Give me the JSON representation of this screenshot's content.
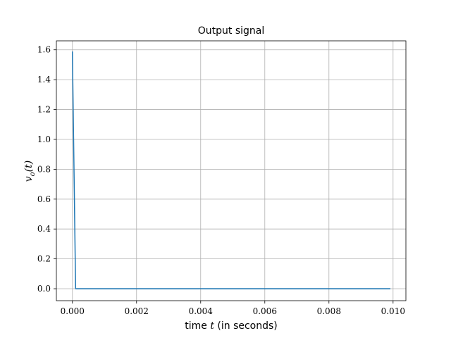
{
  "chart_data": {
    "type": "line",
    "title": "Output signal",
    "xlabel": "time t (in seconds)",
    "ylabel": "v_o(t)",
    "xlim": [
      -0.0005,
      0.0104
    ],
    "ylim": [
      -0.08,
      1.66
    ],
    "xticks": [
      0.0,
      0.002,
      0.004,
      0.006,
      0.008,
      0.01
    ],
    "xtick_labels": [
      "0.000",
      "0.002",
      "0.004",
      "0.006",
      "0.008",
      "0.010"
    ],
    "yticks": [
      0.0,
      0.2,
      0.4,
      0.6,
      0.8,
      1.0,
      1.2,
      1.4,
      1.6
    ],
    "ytick_labels": [
      "0.0",
      "0.2",
      "0.4",
      "0.6",
      "0.8",
      "1.0",
      "1.2",
      "1.4",
      "1.6"
    ],
    "grid": true,
    "series": [
      {
        "color": "#1f77b4",
        "x": [
          0.0,
          0.0001,
          0.001,
          0.002,
          0.003,
          0.004,
          0.005,
          0.006,
          0.007,
          0.008,
          0.009,
          0.0099
        ],
        "y": [
          1.585,
          0.0,
          0.0,
          0.0,
          0.0,
          0.0,
          0.0,
          0.0,
          0.0,
          0.0,
          0.0,
          0.0
        ]
      }
    ]
  }
}
